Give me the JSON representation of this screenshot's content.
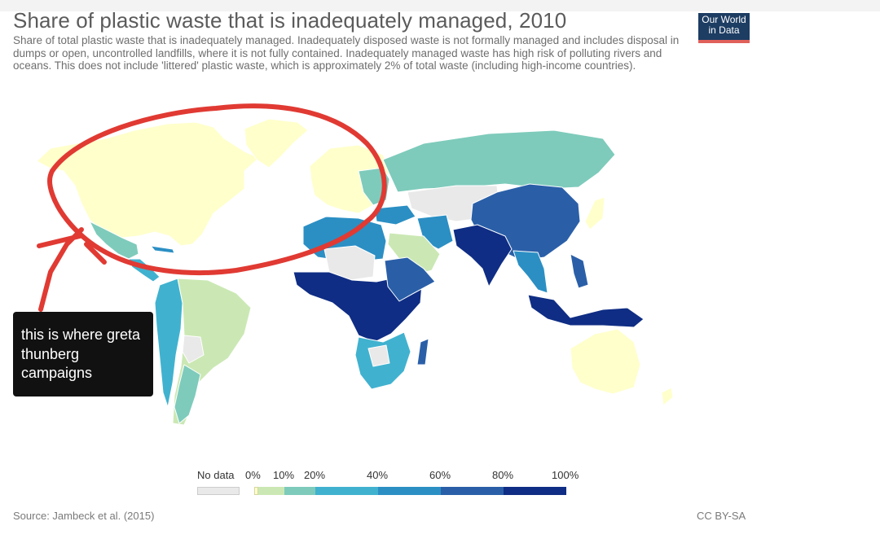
{
  "title": "Share of plastic waste that is inadequately managed, 2010",
  "subtitle": "Share of total plastic waste that is inadequately managed. Inadequately disposed waste is not formally managed and includes disposal in dumps or open, uncontrolled landfills, where it is not fully contained. Inadequately managed waste has high risk of polluting rivers and oceans. This does not include 'littered' plastic waste, which is approximately 2% of total waste (including high-income countries).",
  "logo": {
    "line1": "Our World",
    "line2": "in Data"
  },
  "annotation": {
    "text": "this is where greta thunberg campaigns",
    "circle_color": "#e03a33"
  },
  "legend": {
    "no_data_label": "No data",
    "no_data_color": "#e9e9e9",
    "labels": [
      "0%",
      "10%",
      "20%",
      "40%",
      "60%",
      "80%",
      "100%"
    ],
    "bins": [
      {
        "range": "0-10%",
        "color": "#cbe8b4"
      },
      {
        "range": "10-20%",
        "color": "#7ecbbb"
      },
      {
        "range": "20-40%",
        "color": "#40b2cf"
      },
      {
        "range": "40-60%",
        "color": "#2b8fc4"
      },
      {
        "range": "60-80%",
        "color": "#2a5fa8"
      },
      {
        "range": "80-100%",
        "color": "#0f2d84"
      }
    ],
    "lowest_color": "#ffffcc"
  },
  "source": "Source: Jambeck et al. (2015)",
  "license": "CC BY-SA",
  "map": {
    "ocean_color": "#ffffff",
    "border_color": "#ffffff",
    "regions": [
      {
        "name": "North America",
        "color": "#ffffcc"
      },
      {
        "name": "Greenland",
        "color": "#ffffcc"
      },
      {
        "name": "Europe",
        "color": "#ffffcc"
      },
      {
        "name": "Australia",
        "color": "#ffffcc"
      },
      {
        "name": "Mexico",
        "color": "#7ecbbb"
      },
      {
        "name": "Russia",
        "color": "#7ecbbb"
      },
      {
        "name": "China",
        "color": "#2a5fa8"
      },
      {
        "name": "India",
        "color": "#0f2d84"
      },
      {
        "name": "Indonesia",
        "color": "#0f2d84"
      },
      {
        "name": "Brazil",
        "color": "#cbe8b4"
      },
      {
        "name": "Saudi Arabia",
        "color": "#cbe8b4"
      },
      {
        "name": "Central Africa",
        "color": "#0f2d84"
      },
      {
        "name": "Southern Africa",
        "color": "#40b2cf"
      },
      {
        "name": "Kazakhstan",
        "color": "#e9e9e9"
      },
      {
        "name": "Sahara",
        "color": "#e9e9e9"
      }
    ]
  }
}
